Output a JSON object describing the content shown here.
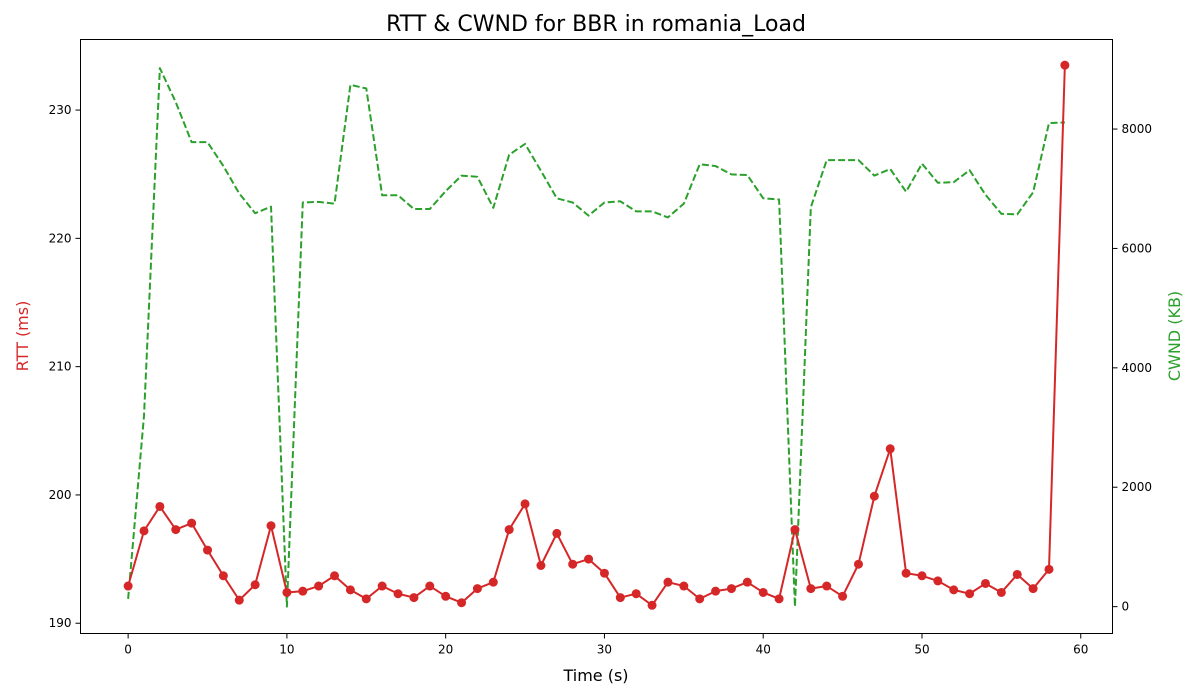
{
  "chart_data": {
    "type": "line",
    "title": "RTT & CWND for BBR in romania_Load",
    "xlabel": "Time (s)",
    "ylabel_left": "RTT (ms)",
    "ylabel_right": "CWND (KB)",
    "xlim": [
      -3,
      62
    ],
    "ylim_left": [
      189.2,
      235.5
    ],
    "ylim_right": [
      -450,
      9500
    ],
    "xticks": [
      0,
      10,
      20,
      30,
      40,
      50,
      60
    ],
    "yticks_left": [
      190,
      200,
      210,
      220,
      230
    ],
    "yticks_right": [
      0,
      2000,
      4000,
      6000,
      8000
    ],
    "grid": false,
    "colors": {
      "rtt": "#d62728",
      "cwnd": "#2ca02c"
    },
    "x": [
      0,
      1,
      2,
      3,
      4,
      5,
      6,
      7,
      8,
      9,
      10,
      11,
      12,
      13,
      14,
      15,
      16,
      17,
      18,
      19,
      20,
      21,
      22,
      23,
      24,
      25,
      26,
      27,
      28,
      29,
      30,
      31,
      32,
      33,
      34,
      35,
      36,
      37,
      38,
      39,
      40,
      41,
      42,
      43,
      44,
      45,
      46,
      47,
      48,
      49,
      50,
      51,
      52,
      53,
      54,
      55,
      56,
      57,
      58,
      59
    ],
    "series": [
      {
        "name": "RTT",
        "axis": "left",
        "style": "solid-marker",
        "values": [
          192.9,
          197.2,
          199.1,
          197.3,
          197.8,
          195.7,
          193.7,
          191.8,
          193.0,
          197.6,
          192.4,
          192.5,
          192.9,
          193.7,
          192.6,
          191.9,
          192.9,
          192.3,
          192.0,
          192.9,
          192.1,
          191.6,
          192.7,
          193.2,
          197.3,
          199.3,
          194.5,
          197.0,
          194.6,
          195.0,
          193.9,
          192.0,
          192.3,
          191.4,
          193.2,
          192.9,
          191.9,
          192.5,
          192.7,
          193.2,
          192.4,
          191.9,
          197.3,
          192.7,
          192.9,
          192.1,
          194.6,
          199.9,
          203.6,
          193.9,
          193.7,
          193.3,
          192.6,
          192.3,
          193.1,
          192.4,
          193.8,
          192.7,
          194.2,
          233.5
        ]
      },
      {
        "name": "CWND",
        "axis": "right",
        "style": "dashed",
        "values": [
          130,
          3200,
          9020,
          8450,
          7780,
          7780,
          7380,
          6920,
          6590,
          6700,
          0,
          6770,
          6780,
          6750,
          8740,
          8680,
          6890,
          6890,
          6660,
          6660,
          6960,
          7220,
          7200,
          6680,
          7570,
          7750,
          7300,
          6840,
          6770,
          6550,
          6770,
          6790,
          6620,
          6620,
          6520,
          6750,
          7410,
          7380,
          7240,
          7230,
          6840,
          6820,
          0,
          6690,
          7480,
          7480,
          7480,
          7220,
          7330,
          6950,
          7420,
          7100,
          7110,
          7310,
          6900,
          6580,
          6570,
          6940,
          8100,
          8110
        ]
      }
    ]
  }
}
